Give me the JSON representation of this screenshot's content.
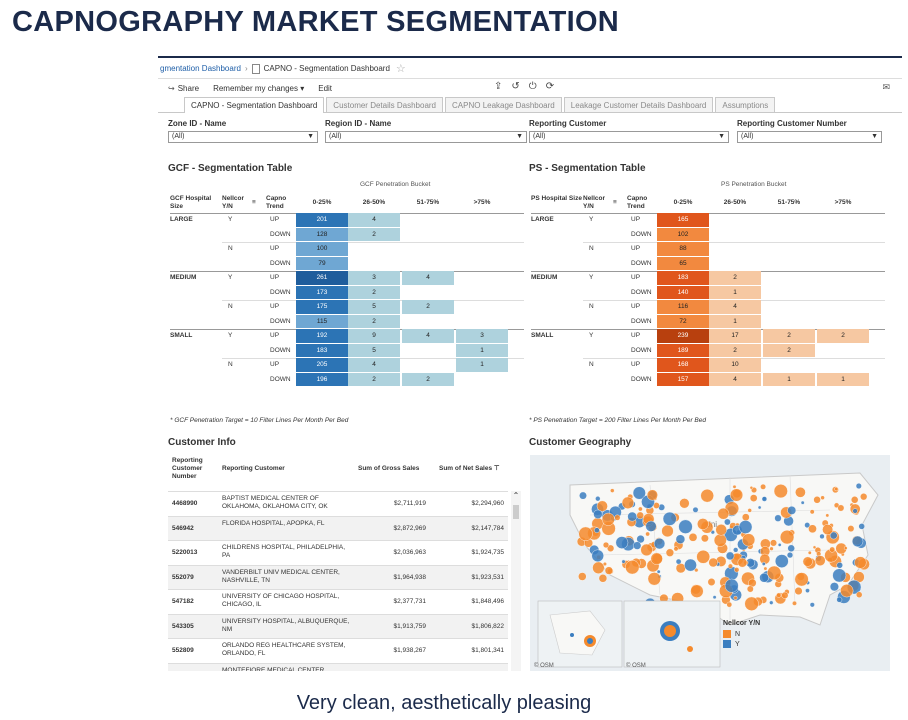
{
  "slide": {
    "title": "CAPNOGRAPHY MARKET SEGMENTATION",
    "caption": "Very clean, aesthetically pleasing"
  },
  "breadcrumb": {
    "parent": "gmentation Dashboard",
    "separator": "›",
    "current": "CAPNO - Segmentation Dashboard"
  },
  "toolbar": {
    "share": "Share",
    "remember": "Remember my changes",
    "edit": "Edit"
  },
  "tabs": [
    {
      "label": "CAPNO - Segmentation Dashboard",
      "active": true
    },
    {
      "label": "Customer Details Dashboard",
      "active": false
    },
    {
      "label": "CAPNO Leakage Dashboard",
      "active": false
    },
    {
      "label": "Leakage Customer Details Dashboard",
      "active": false
    },
    {
      "label": "Assumptions",
      "active": false
    }
  ],
  "filters": [
    {
      "label": "Zone ID - Name",
      "value": "(All)"
    },
    {
      "label": "Region ID - Name",
      "value": "(All)"
    },
    {
      "label": "Reporting Customer",
      "value": "(All)"
    },
    {
      "label": "Reporting Customer Number",
      "value": "(All)"
    }
  ],
  "gcf": {
    "title": "GCF - Segmentation Table",
    "bucket_title": "GCF Penetration Bucket",
    "col_size": "GCF Hospital Size",
    "col_nellcor": "Nellcor Y/N",
    "col_trend": "Capno Trend",
    "buckets": [
      "0-25%",
      "26-50%",
      "51-75%",
      ">75%"
    ],
    "colors": {
      "dark": "#1f5d9c",
      "mid": "#2c74b5",
      "light": "#6fa7d3",
      "pale": "#aed2dd"
    },
    "rows": [
      {
        "size": "LARGE",
        "nellcor": "Y",
        "trend": "UP",
        "v": [
          201,
          4,
          null,
          null
        ]
      },
      {
        "size": "",
        "nellcor": "",
        "trend": "DOWN",
        "v": [
          128,
          2,
          null,
          null
        ]
      },
      {
        "size": "",
        "nellcor": "N",
        "trend": "UP",
        "v": [
          100,
          null,
          null,
          null
        ]
      },
      {
        "size": "",
        "nellcor": "",
        "trend": "DOWN",
        "v": [
          79,
          null,
          null,
          null
        ]
      },
      {
        "size": "MEDIUM",
        "nellcor": "Y",
        "trend": "UP",
        "v": [
          261,
          3,
          4,
          null
        ]
      },
      {
        "size": "",
        "nellcor": "",
        "trend": "DOWN",
        "v": [
          173,
          2,
          null,
          null
        ]
      },
      {
        "size": "",
        "nellcor": "N",
        "trend": "UP",
        "v": [
          175,
          5,
          2,
          null
        ]
      },
      {
        "size": "",
        "nellcor": "",
        "trend": "DOWN",
        "v": [
          115,
          2,
          null,
          null
        ]
      },
      {
        "size": "SMALL",
        "nellcor": "Y",
        "trend": "UP",
        "v": [
          192,
          9,
          4,
          3
        ]
      },
      {
        "size": "",
        "nellcor": "",
        "trend": "DOWN",
        "v": [
          183,
          5,
          null,
          1
        ]
      },
      {
        "size": "",
        "nellcor": "N",
        "trend": "UP",
        "v": [
          205,
          4,
          null,
          1
        ]
      },
      {
        "size": "",
        "nellcor": "",
        "trend": "DOWN",
        "v": [
          196,
          2,
          2,
          null
        ]
      }
    ],
    "footnote": "* GCF Penetration Target = 10 Filter Lines Per Month Per Bed"
  },
  "ps": {
    "title": "PS - Segmentation Table",
    "bucket_title": "PS Penetration Bucket",
    "col_size": "PS Hospital Size",
    "col_nellcor": "Nellcor Y/N",
    "col_trend": "Capno Trend",
    "buckets": [
      "0-25%",
      "26-50%",
      "51-75%",
      ">75%"
    ],
    "colors": {
      "dark": "#b8400e",
      "mid": "#e0561c",
      "light": "#f2893f",
      "pale": "#f6c8a2"
    },
    "rows": [
      {
        "size": "LARGE",
        "nellcor": "Y",
        "trend": "UP",
        "v": [
          165,
          null,
          null,
          null
        ]
      },
      {
        "size": "",
        "nellcor": "",
        "trend": "DOWN",
        "v": [
          102,
          null,
          null,
          null
        ]
      },
      {
        "size": "",
        "nellcor": "N",
        "trend": "UP",
        "v": [
          88,
          null,
          null,
          null
        ]
      },
      {
        "size": "",
        "nellcor": "",
        "trend": "DOWN",
        "v": [
          65,
          null,
          null,
          null
        ]
      },
      {
        "size": "MEDIUM",
        "nellcor": "Y",
        "trend": "UP",
        "v": [
          183,
          2,
          null,
          null
        ]
      },
      {
        "size": "",
        "nellcor": "",
        "trend": "DOWN",
        "v": [
          140,
          1,
          null,
          null
        ]
      },
      {
        "size": "",
        "nellcor": "N",
        "trend": "UP",
        "v": [
          116,
          4,
          null,
          null
        ]
      },
      {
        "size": "",
        "nellcor": "",
        "trend": "DOWN",
        "v": [
          72,
          1,
          null,
          null
        ]
      },
      {
        "size": "SMALL",
        "nellcor": "Y",
        "trend": "UP",
        "v": [
          239,
          17,
          2,
          2
        ]
      },
      {
        "size": "",
        "nellcor": "",
        "trend": "DOWN",
        "v": [
          189,
          2,
          2,
          null
        ]
      },
      {
        "size": "",
        "nellcor": "N",
        "trend": "UP",
        "v": [
          168,
          10,
          null,
          null
        ]
      },
      {
        "size": "",
        "nellcor": "",
        "trend": "DOWN",
        "v": [
          157,
          4,
          1,
          1
        ]
      }
    ],
    "footnote": "* PS Penetration Target = 200 Filter Lines Per Month Per Bed"
  },
  "customer_info": {
    "title": "Customer Info",
    "headers": {
      "number": "Reporting Customer Number",
      "name": "Reporting Customer",
      "gross": "Sum of Gross Sales",
      "net": "Sum of Net Sales"
    },
    "rows": [
      {
        "number": "4468990",
        "name": "BAPTIST MEDICAL CENTER OF OKLAHOMA, OKLAHOMA CITY, OK",
        "gross": "$2,711,919",
        "net": "$2,294,960"
      },
      {
        "number": "546942",
        "name": "FLORIDA HOSPITAL, APOPKA, FL",
        "gross": "$2,872,969",
        "net": "$2,147,784"
      },
      {
        "number": "5220013",
        "name": "CHILDRENS HOSPITAL, PHILADELPHIA, PA",
        "gross": "$2,036,963",
        "net": "$1,924,735"
      },
      {
        "number": "552079",
        "name": "VANDERBILT UNIV MEDICAL CENTER, NASHVILLE, TN",
        "gross": "$1,964,938",
        "net": "$1,923,531"
      },
      {
        "number": "547182",
        "name": "UNIVERSITY OF CHICAGO HOSPITAL, CHICAGO, IL",
        "gross": "$2,377,731",
        "net": "$1,848,496"
      },
      {
        "number": "543305",
        "name": "UNIVERSITY HOSPITAL, ALBUQUERQUE, NM",
        "gross": "$1,913,759",
        "net": "$1,806,822"
      },
      {
        "number": "552809",
        "name": "ORLANDO REG HEALTHCARE SYSTEM, ORLANDO, FL",
        "gross": "$1,938,267",
        "net": "$1,801,341"
      },
      {
        "number": "",
        "name": "MONTEFIORE MEDICAL CENTER",
        "gross": "",
        "net": ""
      }
    ]
  },
  "geography": {
    "title": "Customer Geography",
    "legend_title": "Nellcor Y/N",
    "legend": [
      {
        "label": "N",
        "color": "#f58a2c"
      },
      {
        "label": "Y",
        "color": "#3b7ec0"
      }
    ],
    "osm": "© OSM",
    "map_label": "Uni"
  }
}
